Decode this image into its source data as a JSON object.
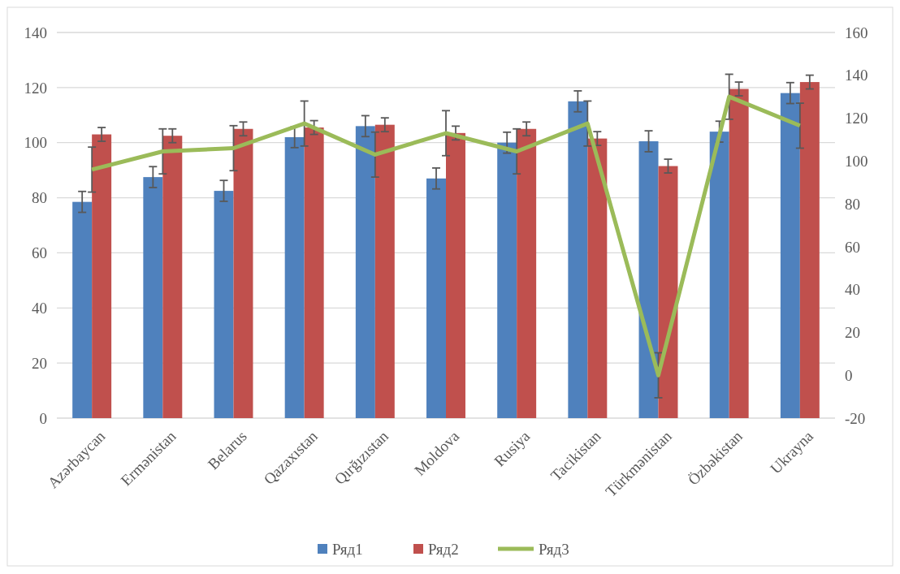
{
  "chart_data": {
    "type": "bar",
    "categories": [
      "Azərbaycan",
      "Ermənistan",
      "Belarus",
      "Qazaxıstan",
      "Qırğızıstan",
      "Moldova",
      "Rusiya",
      "Tacikistan",
      "Türkmənistan",
      "Özbəkistan",
      "Ukrayna"
    ],
    "series": [
      {
        "name": "Ряд1",
        "color": "#4f81bd",
        "values": [
          78.5,
          87.5,
          82.5,
          102,
          106,
          87,
          100,
          115,
          100.5,
          104,
          118
        ],
        "errors": [
          3.8,
          3.8,
          3.8,
          3.8,
          3.8,
          3.8,
          3.8,
          3.8,
          3.8,
          3.8,
          3.8
        ]
      },
      {
        "name": "Ряд2",
        "color": "#c0504d",
        "values": [
          103,
          102.5,
          105,
          105.5,
          106.5,
          103.5,
          105,
          101.5,
          91.5,
          119.5,
          122
        ],
        "errors": [
          2.5,
          2.5,
          2.5,
          2.5,
          2.5,
          2.5,
          2.5,
          2.5,
          2.5,
          2.5,
          2.5
        ]
      },
      {
        "name": "Ряд3",
        "color": "#9bbb59",
        "type": "line",
        "axis": "y2",
        "values": [
          96,
          104.5,
          106,
          117.5,
          103,
          113,
          104.5,
          117.5,
          0,
          130,
          116.5
        ],
        "errors": [
          10.5,
          10.5,
          10.5,
          10.5,
          10.5,
          10.5,
          10.5,
          10.5,
          10.5,
          10.5,
          10.5
        ]
      }
    ],
    "ylim": [
      0,
      140
    ],
    "yticks": [
      0,
      20,
      40,
      60,
      80,
      100,
      120,
      140
    ],
    "y2lim": [
      -20,
      160
    ],
    "y2ticks": [
      -20,
      0,
      20,
      40,
      60,
      80,
      100,
      120,
      140,
      160
    ],
    "grid": "y",
    "legend": "bottom",
    "marker": "none"
  }
}
